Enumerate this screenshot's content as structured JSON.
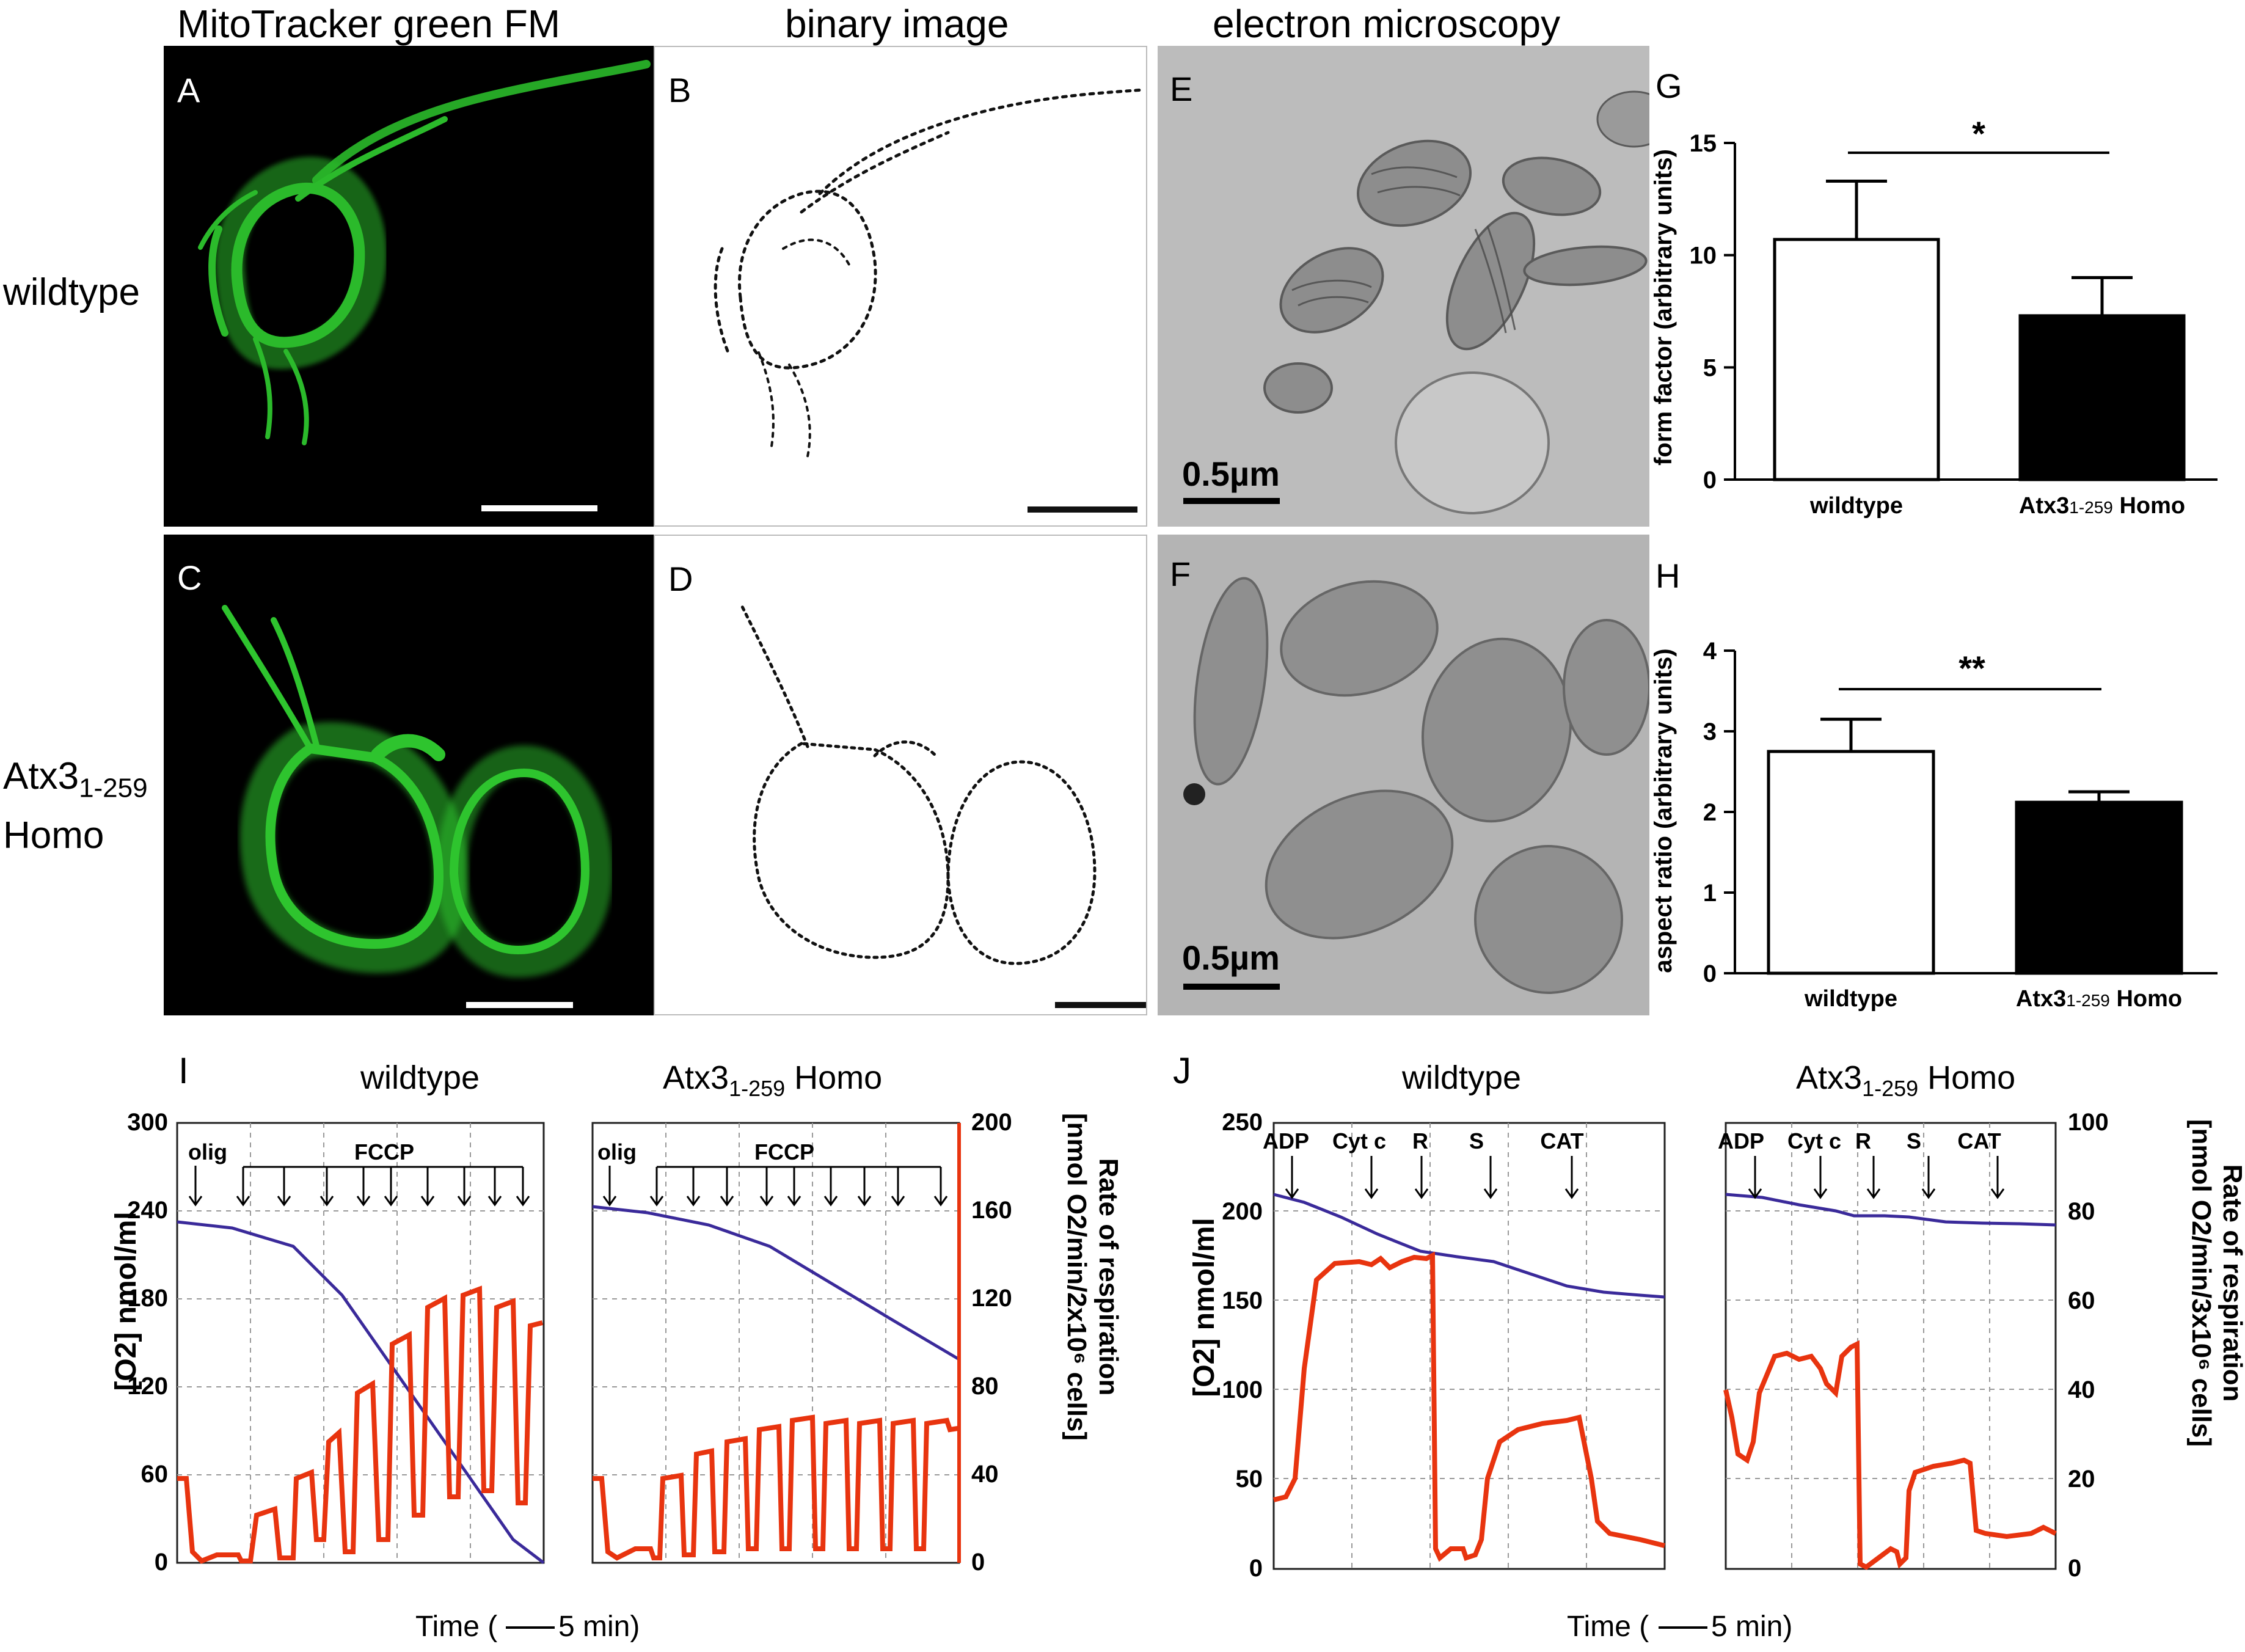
{
  "headers": {
    "col1": "MitoTracker green FM",
    "col2": "binary image",
    "col3": "electron microscopy"
  },
  "row_labels": {
    "row1": "wildtype",
    "row2_main": "Atx3",
    "row2_sub": "1-259",
    "row2_line2": "Homo"
  },
  "panel_letters": {
    "A": "A",
    "B": "B",
    "C": "C",
    "D": "D",
    "E": "E",
    "F": "F",
    "G": "G",
    "H": "H",
    "I": "I",
    "J": "J"
  },
  "scale_bars": {
    "E": "0.5µm",
    "F": "0.5µm"
  },
  "colors": {
    "fluor_bg": "#000000",
    "fluor": "#2ec42e",
    "em_bg": "#bdbdbd",
    "oxygen_line": "#3a2a9a",
    "rate_line": "#e8340f"
  },
  "bar_G": {
    "significance": "*",
    "ylabel": "form factor (arbitrary units)",
    "yticks": [
      "0",
      "5",
      "10",
      "15"
    ],
    "categories": [
      "wildtype",
      "Atx3",
      "1-259",
      " Homo"
    ]
  },
  "bar_H": {
    "significance": "**",
    "ylabel": "aspect ratio (arbitrary units)",
    "yticks": [
      "0",
      "1",
      "2",
      "3",
      "4"
    ],
    "categories": [
      "wildtype",
      "Atx3",
      "1-259",
      " Homo"
    ]
  },
  "panel_I": {
    "title_left": "wildtype",
    "title_right_main": "Atx3",
    "title_right_sub": "1-259",
    "title_right_tail": " Homo",
    "ylabel_left": "[O2] nmol/ml",
    "ylabel_right": "Rate of respiration",
    "ylabel_right2": "[nmol O2/min/2x10⁶ cells]",
    "yticks_left": [
      "0",
      "60",
      "120",
      "180",
      "240",
      "300"
    ],
    "yticks_right": [
      "0",
      "40",
      "80",
      "120",
      "160",
      "200"
    ],
    "annot_olig": "olig",
    "annot_fccp": "FCCP",
    "time_label": "Time (",
    "time_unit": "5 min)"
  },
  "panel_J": {
    "title_left": "wildtype",
    "title_right_main": "Atx3",
    "title_right_sub": "1-259",
    "title_right_tail": " Homo",
    "ylabel_left": "[O2] nmol/ml",
    "ylabel_right": "Rate of respiration",
    "ylabel_right2": "[nmol O2/min/3x10⁶ cells]",
    "yticks_left": [
      "0",
      "50",
      "100",
      "150",
      "200",
      "250"
    ],
    "yticks_right": [
      "0",
      "20",
      "40",
      "60",
      "80",
      "100"
    ],
    "annots": [
      "ADP",
      "Cyt c",
      "R",
      "S",
      "CAT"
    ],
    "time_label": "Time (",
    "time_unit": "5 min)"
  },
  "chart_data": [
    {
      "type": "bar",
      "title": "",
      "categories": [
        "wildtype",
        "Atx3 1-259 Homo"
      ],
      "values": [
        10.7,
        7.3
      ],
      "error": [
        2.6,
        1.7
      ],
      "ylabel": "form factor (arbitrary units)",
      "ylim": [
        0,
        15
      ],
      "significance": "*"
    },
    {
      "type": "bar",
      "title": "",
      "categories": [
        "wildtype",
        "Atx3 1-259 Homo"
      ],
      "values": [
        2.75,
        2.12
      ],
      "error": [
        0.4,
        0.13
      ],
      "ylabel": "aspect ratio (arbitrary units)",
      "ylim": [
        0,
        4
      ],
      "significance": "**"
    }
  ]
}
